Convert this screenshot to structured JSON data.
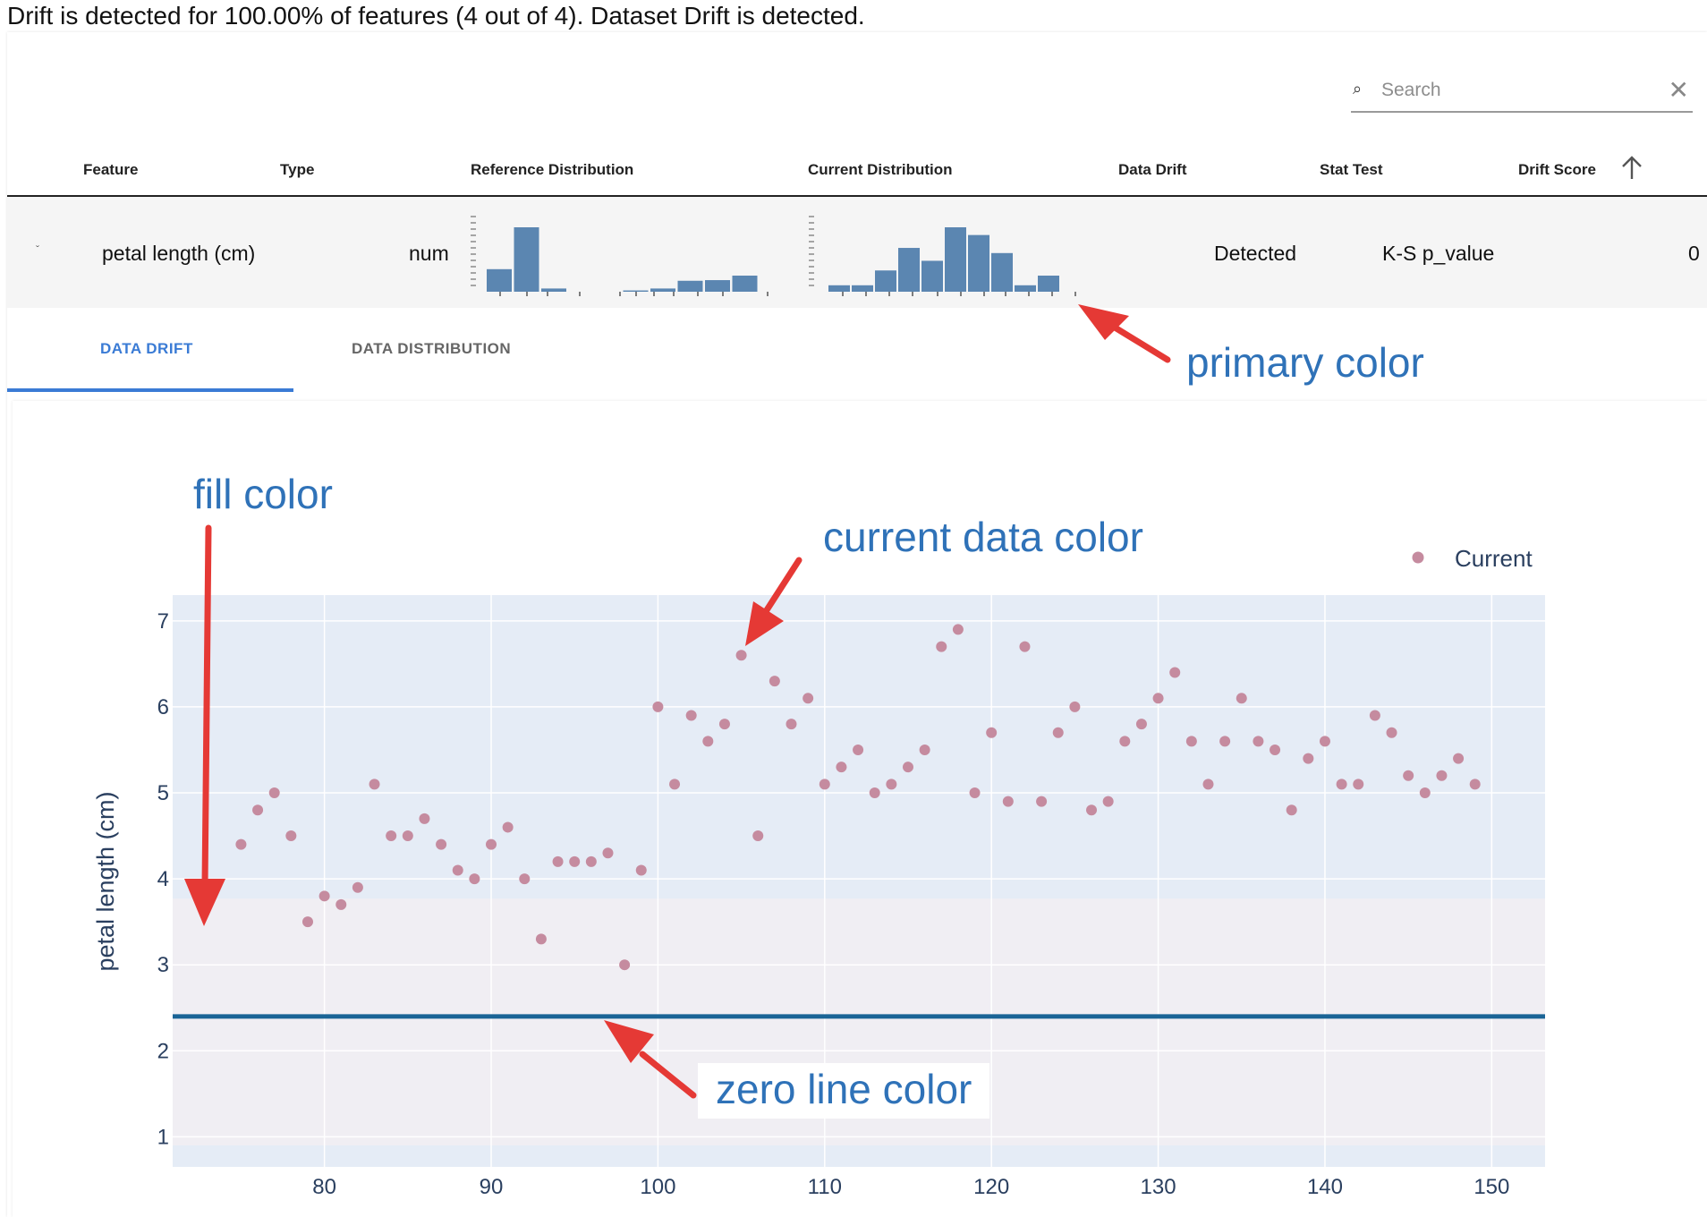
{
  "summary": "Drift is detected for 100.00% of features (4 out of 4). Dataset Drift is detected.",
  "search": {
    "placeholder": "Search",
    "value": ""
  },
  "table": {
    "headers": {
      "feature": "Feature",
      "type": "Type",
      "reference": "Reference Distribution",
      "current": "Current Distribution",
      "data_drift": "Data Drift",
      "stat_test": "Stat Test",
      "drift_score": "Drift Score"
    },
    "row": {
      "feature": "petal length (cm)",
      "type": "num",
      "data_drift": "Detected",
      "stat_test": "K-S p_value",
      "drift_score": "0",
      "reference_hist": [
        0.35,
        1.0,
        0.05,
        0,
        0,
        0.02,
        0.05,
        0.17,
        0.18,
        0.25
      ],
      "current_hist": [
        0.1,
        0.1,
        0.33,
        0.68,
        0.48,
        1.0,
        0.88,
        0.6,
        0.1,
        0.25
      ]
    }
  },
  "tabs": {
    "data_drift": "DATA DRIFT",
    "data_distribution": "DATA DISTRIBUTION"
  },
  "annotations": {
    "primary_color": "primary color",
    "fill_color": "fill color",
    "current_data_color": "current data color",
    "zero_line_color": "zero line color"
  },
  "colors": {
    "primary": "#5b86b1",
    "fill": "#e5ecf6",
    "fill_lower": "#f0eef3",
    "current_data": "#c58b9f",
    "zero_line": "#1a6496",
    "annotation_text": "#2f72b8",
    "arrow": "#e53935",
    "tab_active": "#3a7bd5"
  },
  "chart_data": {
    "type": "scatter",
    "ylabel": "petal length (cm)",
    "xlim": [
      70.9,
      153.2
    ],
    "ylim": [
      0.65,
      7.3
    ],
    "x_ticks": [
      80,
      90,
      100,
      110,
      120,
      130,
      140,
      150
    ],
    "y_ticks": [
      1,
      2,
      3,
      4,
      5,
      6,
      7
    ],
    "legend": "Current",
    "legend_position": "top-right",
    "fill_band": [
      3.77,
      7.3
    ],
    "zero_line": 2.4,
    "series": [
      {
        "name": "Current",
        "x": [
          75,
          76,
          77,
          78,
          79,
          80,
          81,
          82,
          83,
          84,
          85,
          86,
          87,
          88,
          89,
          90,
          91,
          92,
          93,
          94,
          95,
          96,
          97,
          98,
          99,
          100,
          101,
          102,
          103,
          104,
          105,
          106,
          107,
          108,
          109,
          110,
          111,
          112,
          113,
          114,
          115,
          116,
          117,
          118,
          119,
          120,
          121,
          122,
          123,
          124,
          125,
          126,
          127,
          128,
          129,
          130,
          131,
          132,
          133,
          134,
          135,
          136,
          137,
          138,
          139,
          140,
          141,
          142,
          143,
          144,
          145,
          146,
          147,
          148,
          149
        ],
        "y": [
          4.4,
          4.8,
          5.0,
          4.5,
          3.5,
          3.8,
          3.7,
          3.9,
          5.1,
          4.5,
          4.5,
          4.7,
          4.4,
          4.1,
          4.0,
          4.4,
          4.6,
          4.0,
          3.3,
          4.2,
          4.2,
          4.2,
          4.3,
          3.0,
          4.1,
          6.0,
          5.1,
          5.9,
          5.6,
          5.8,
          6.6,
          4.5,
          6.3,
          5.8,
          6.1,
          5.1,
          5.3,
          5.5,
          5.0,
          5.1,
          5.3,
          5.5,
          6.7,
          6.9,
          5.0,
          5.7,
          4.9,
          6.7,
          4.9,
          5.7,
          6.0,
          4.8,
          4.9,
          5.6,
          5.8,
          6.1,
          6.4,
          5.6,
          5.1,
          5.6,
          6.1,
          5.6,
          5.5,
          4.8,
          5.4,
          5.6,
          5.1,
          5.1,
          5.9,
          5.7,
          5.2,
          5.0,
          5.2,
          5.4,
          5.1
        ]
      }
    ]
  }
}
